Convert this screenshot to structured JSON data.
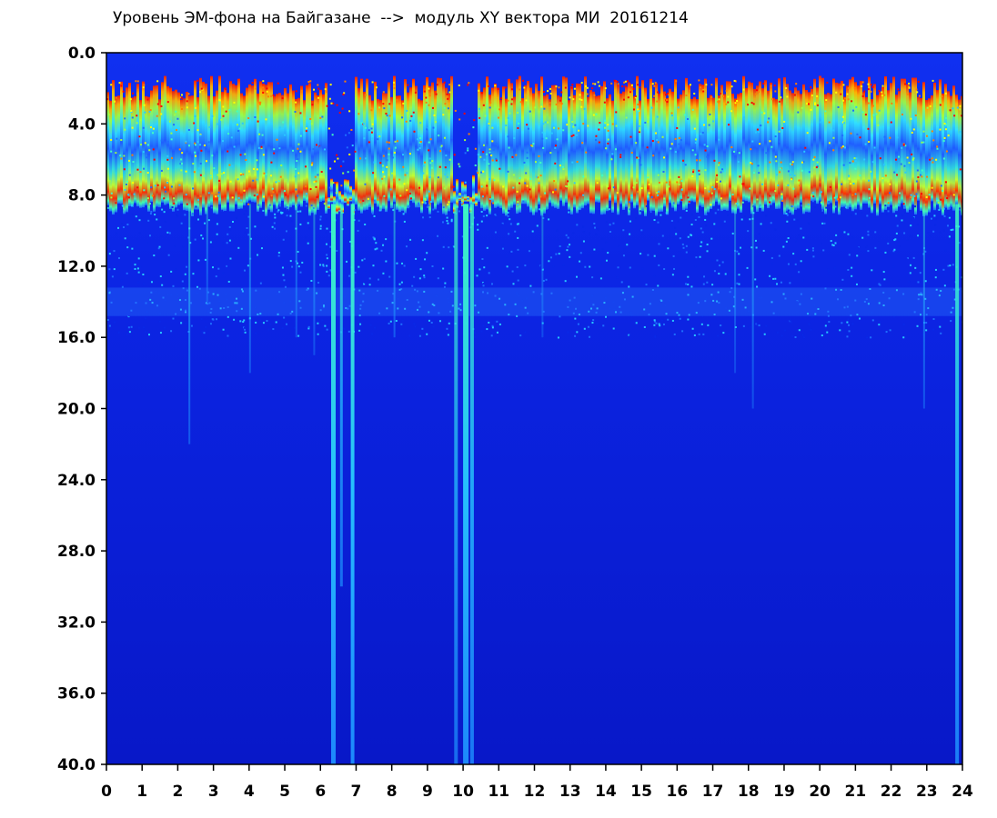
{
  "chart_data": {
    "type": "heatmap",
    "title": "Уровень ЭМ-фона на Байгазане  -->  модуль XY вектора МИ  20161214",
    "xlabel": "",
    "ylabel": "",
    "x_ticks": [
      "0",
      "1",
      "2",
      "3",
      "4",
      "5",
      "6",
      "7",
      "8",
      "9",
      "10",
      "11",
      "12",
      "13",
      "14",
      "15",
      "16",
      "17",
      "18",
      "19",
      "20",
      "21",
      "22",
      "23",
      "24"
    ],
    "y_ticks": [
      "0.0",
      "4.0",
      "8.0",
      "12.0",
      "16.0",
      "20.0",
      "24.0",
      "28.0",
      "32.0",
      "36.0",
      "40.0"
    ],
    "xlim": [
      0,
      24
    ],
    "ylim": [
      0,
      40
    ],
    "y_axis_inverted": true,
    "colormap": [
      "#0000c8",
      "#0a28e6",
      "#1e6eff",
      "#28c8ff",
      "#40ffc0",
      "#a0ff40",
      "#ffff00",
      "#ff8000",
      "#ff0000"
    ],
    "background_color": "#0a1ee0",
    "grid": false,
    "legend": "none",
    "description": [
      {
        "y_range": [
          1.5,
          8.5
        ],
        "level": "high",
        "note": "intense band (red/yellow/green) across most of the day"
      },
      {
        "y_range": [
          3.5,
          6.0
        ],
        "level": "medium",
        "note": "blue/cyan pockets within top band"
      },
      {
        "y_range": [
          8.5,
          16.0
        ],
        "level": "low",
        "note": "blue with scattered cyan; faint band near 14"
      },
      {
        "y_range": [
          16.0,
          40.0
        ],
        "level": "lowest",
        "note": "uniform deep blue"
      }
    ],
    "vertical_features": [
      {
        "x": 6.3,
        "note": "dip: top band absent, cyan streak down"
      },
      {
        "x": 6.85,
        "note": "cyan streak to 40"
      },
      {
        "x": 10.0,
        "note": "dip: top band absent, cyan streak down"
      },
      {
        "x": 23.8,
        "note": "cyan streak"
      }
    ]
  }
}
